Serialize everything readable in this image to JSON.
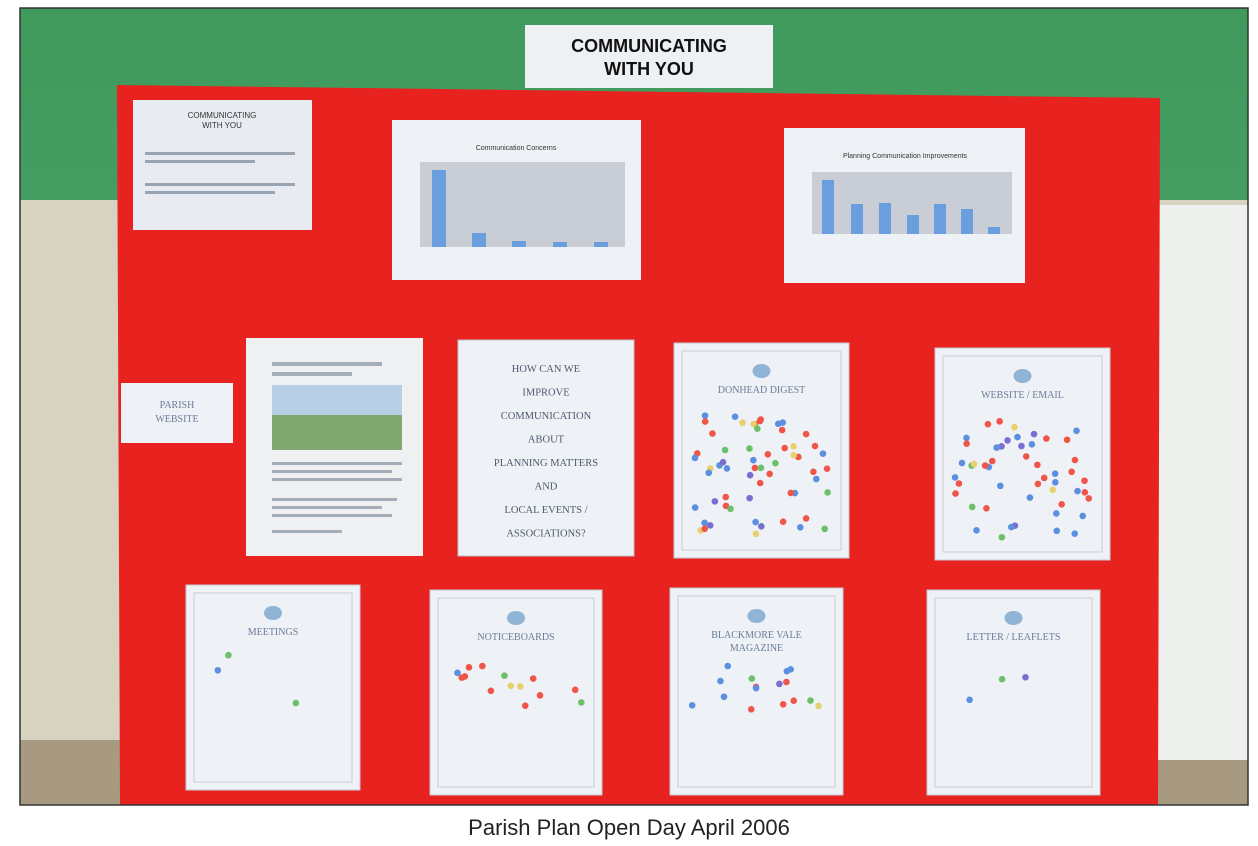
{
  "photo": {
    "sign": [
      "COMMUNICATING",
      "WITH YOU"
    ],
    "intro_sheet": [
      "COMMUNICATING",
      "WITH YOU"
    ],
    "charts": [
      {
        "title": "Communication Concerns"
      },
      {
        "title": "Planning Communication Improvements"
      }
    ],
    "label": [
      "PARISH",
      "WEBSITE"
    ],
    "question": [
      "HOW CAN WE",
      "IMPROVE",
      "COMMUNICATION",
      "ABOUT",
      "PLANNING MATTERS",
      "AND",
      "LOCAL EVENTS /",
      "ASSOCIATIONS?"
    ],
    "sheets": [
      {
        "title": [
          "DONHEAD DIGEST"
        ]
      },
      {
        "title": [
          "WEBSITE / EMAIL"
        ]
      },
      {
        "title": [
          "MEETINGS"
        ]
      },
      {
        "title": [
          "NOTICEBOARDS"
        ]
      },
      {
        "title": [
          "BLACKMORE VALE",
          "MAGAZINE"
        ]
      },
      {
        "title": [
          "LETTER / LEAFLETS"
        ]
      }
    ]
  },
  "caption": "Parish Plan Open Day April 2006"
}
